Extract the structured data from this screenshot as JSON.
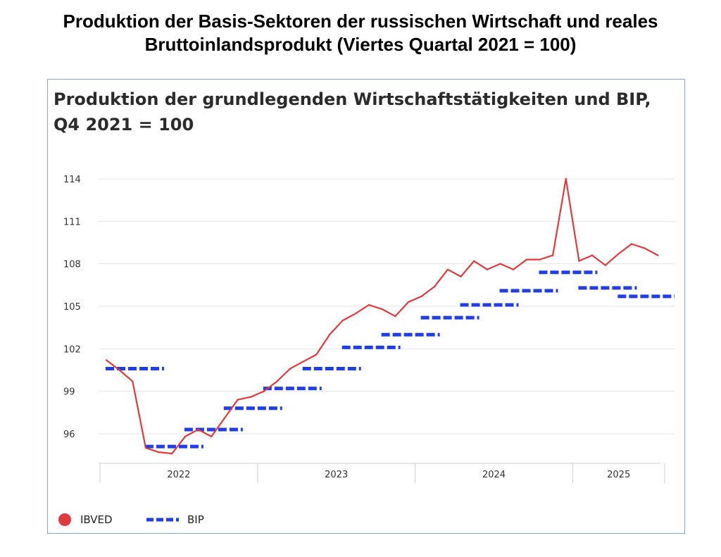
{
  "page_title_line1": "Produktion der Basis-Sektoren der russischen Wirtschaft und reales",
  "page_title_line2": "Bruttoinlandsprodukt (Viertes Quartal 2021 = 100)",
  "chart_data": {
    "type": "line",
    "title_line1": "Produktion der grundlegenden Wirtschaftstätigkeiten und BIP,",
    "title_line2": "Q4 2021 = 100",
    "xlabel": "",
    "ylabel": "",
    "ylim": [
      94.5,
      114.6
    ],
    "yticks": [
      96,
      99,
      102,
      105,
      108,
      111,
      114
    ],
    "grid": true,
    "legend_position": "bottom-left",
    "x_axis_labels": [
      "2022",
      "2023",
      "2024",
      "2025"
    ],
    "series": [
      {
        "name": "IBVED",
        "color": "#e03a3e",
        "style": "line",
        "x": [
          "2022-01",
          "2022-02",
          "2022-03",
          "2022-04",
          "2022-05",
          "2022-06",
          "2022-07",
          "2022-08",
          "2022-09",
          "2022-10",
          "2022-11",
          "2022-12",
          "2023-01",
          "2023-02",
          "2023-03",
          "2023-04",
          "2023-05",
          "2023-06",
          "2023-07",
          "2023-08",
          "2023-09",
          "2023-10",
          "2023-11",
          "2023-12",
          "2024-01",
          "2024-02",
          "2024-03",
          "2024-04",
          "2024-05",
          "2024-06",
          "2024-07",
          "2024-08",
          "2024-09",
          "2024-10",
          "2024-11",
          "2024-12",
          "2025-01",
          "2025-02",
          "2025-03",
          "2025-04",
          "2025-05",
          "2025-06",
          "2025-07"
        ],
        "values": [
          101.2,
          100.5,
          99.7,
          95.0,
          94.7,
          94.6,
          95.8,
          96.3,
          95.8,
          97.1,
          98.4,
          98.6,
          99.0,
          99.7,
          100.6,
          101.1,
          101.6,
          103.0,
          104.0,
          104.5,
          105.1,
          104.8,
          104.3,
          105.3,
          105.7,
          106.4,
          107.6,
          107.1,
          108.2,
          107.6,
          108.0,
          107.6,
          108.3,
          108.3,
          108.6,
          114.0,
          108.2,
          108.6,
          107.9,
          108.7,
          109.4,
          109.1,
          108.6
        ]
      },
      {
        "name": "BIP",
        "color": "#1f3ee8",
        "style": "dashed-step",
        "x": [
          "2022-Q1",
          "2022-Q2",
          "2022-Q3",
          "2022-Q4",
          "2023-Q1",
          "2023-Q2",
          "2023-Q3",
          "2023-Q4",
          "2024-Q1",
          "2024-Q2",
          "2024-Q3",
          "2024-Q4",
          "2025-Q1",
          "2025-Q2"
        ],
        "values": [
          100.6,
          95.1,
          96.3,
          97.8,
          99.2,
          100.6,
          102.1,
          103.0,
          104.2,
          105.1,
          106.1,
          107.4,
          106.3,
          105.7
        ]
      }
    ]
  }
}
